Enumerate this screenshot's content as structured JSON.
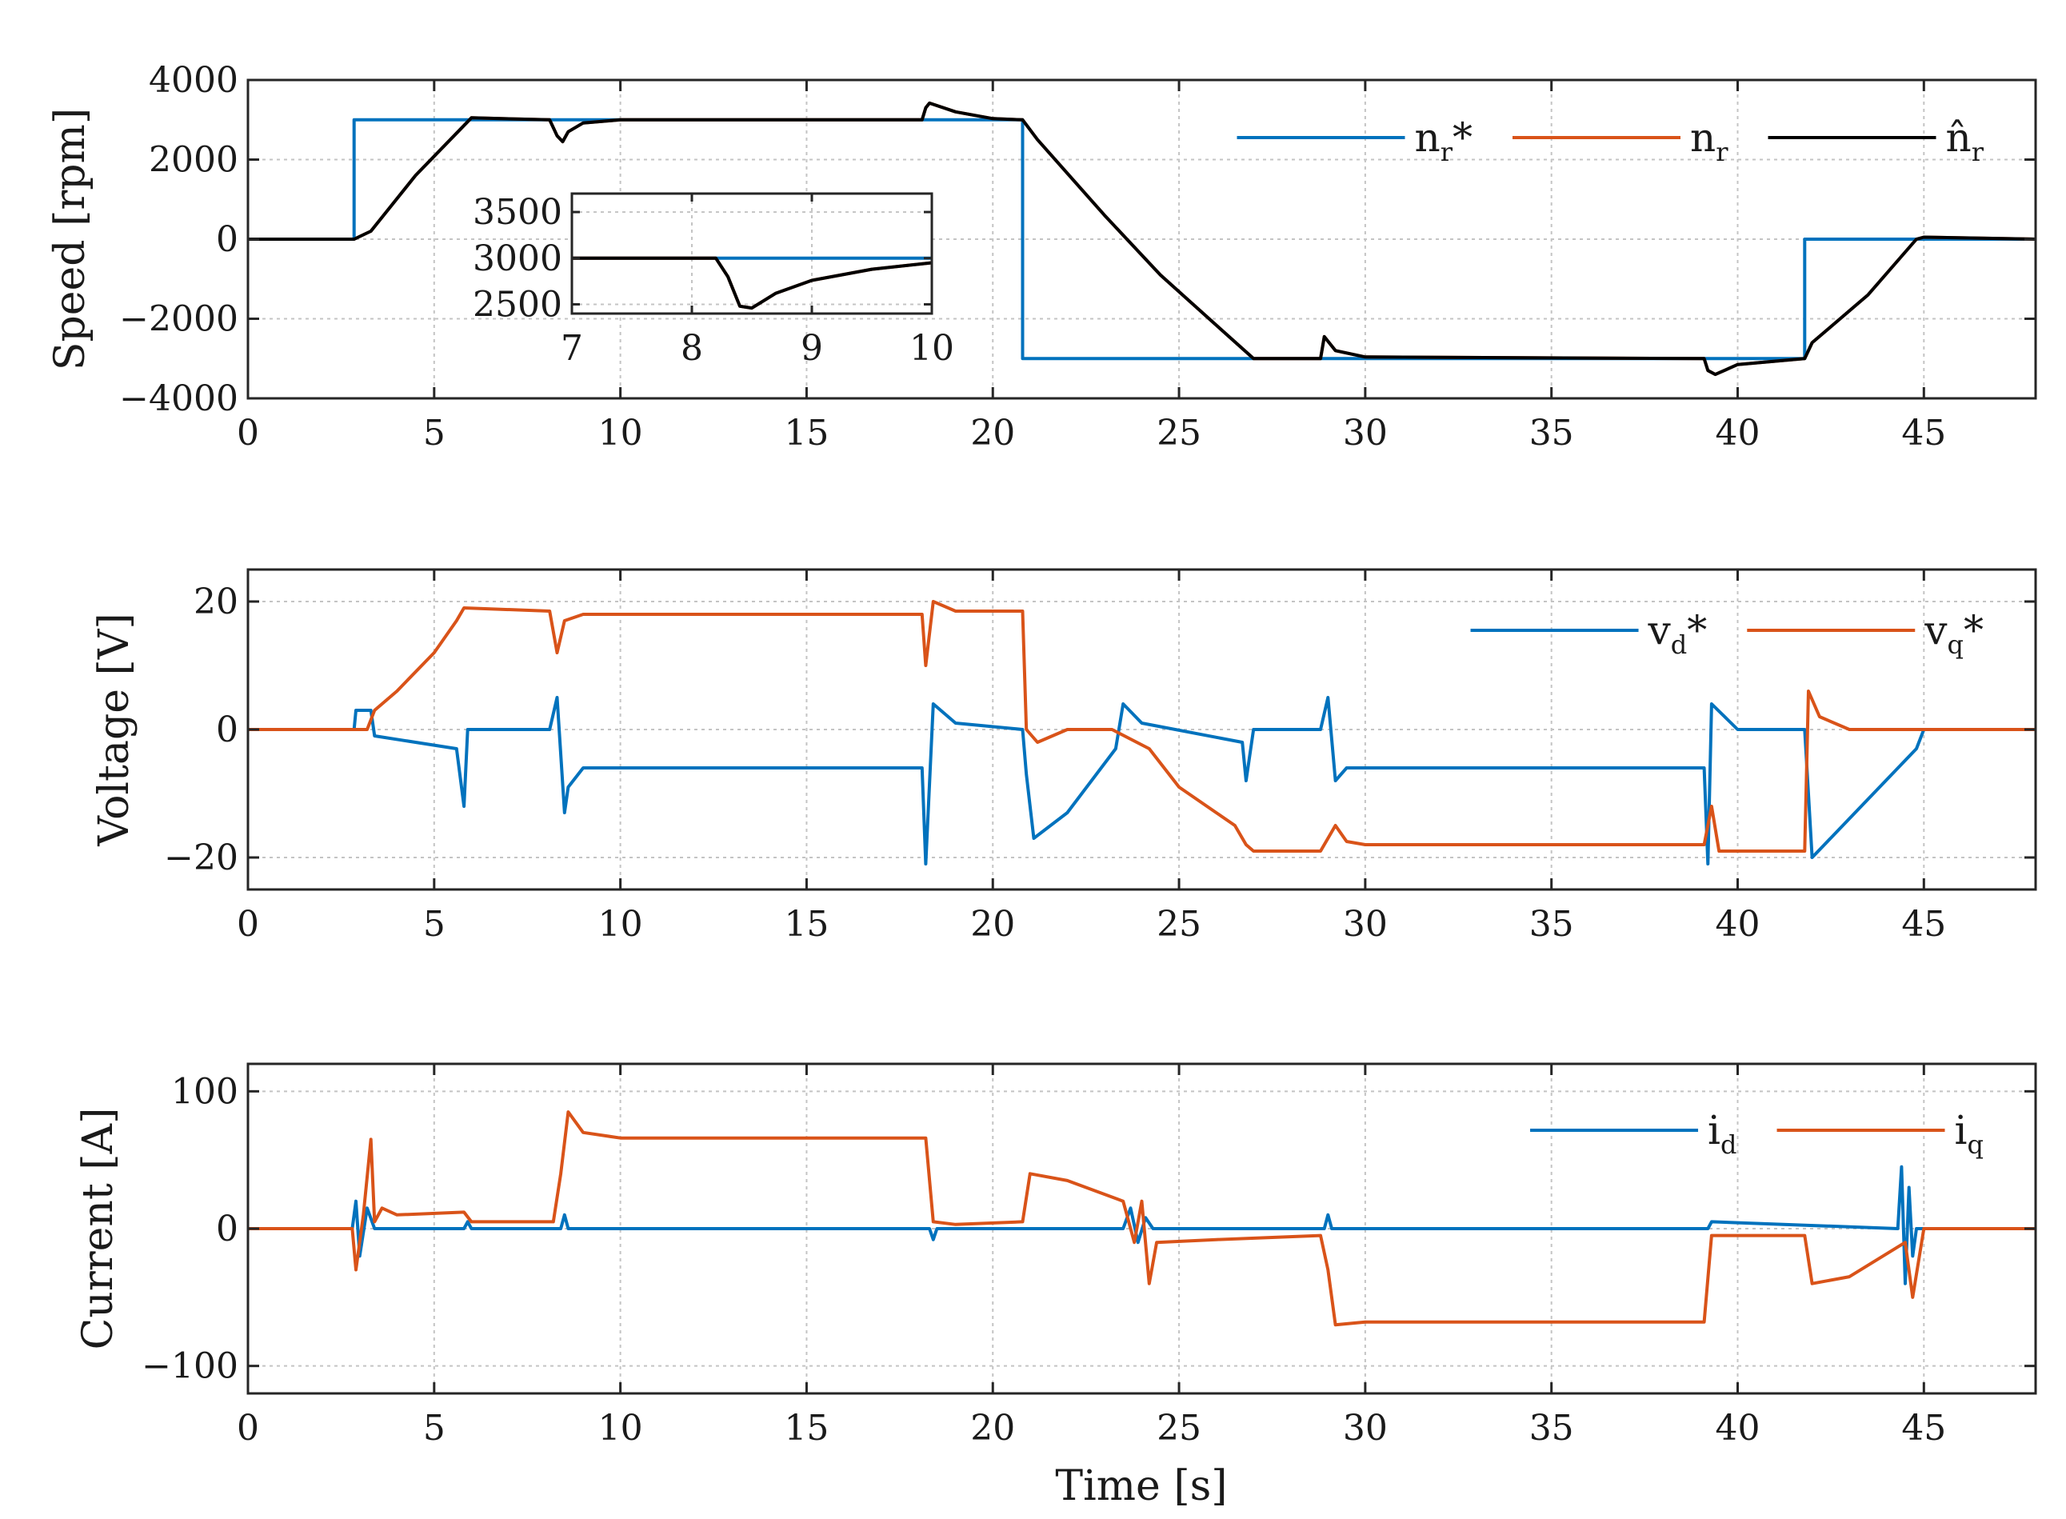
{
  "colors": {
    "blue": "#0072BD",
    "orange": "#D95319",
    "black": "#000000"
  },
  "chart_data": [
    {
      "type": "line",
      "ylabel": "Speed [rpm]",
      "xlabel": "",
      "xlim": [
        0,
        48
      ],
      "ylim": [
        -4000,
        4000
      ],
      "xticks": [
        0,
        5,
        10,
        15,
        20,
        25,
        30,
        35,
        40,
        45
      ],
      "yticks": [
        -4000,
        -2000,
        0,
        2000,
        4000
      ],
      "ytick_labels": [
        "−4000",
        "−2000",
        "0",
        "2000",
        "4000"
      ],
      "grid": true,
      "legend_position": "top-right",
      "legend": [
        {
          "base": "n",
          "sub": "r",
          "suffix": "*",
          "color": "blue"
        },
        {
          "base": "n",
          "sub": "r",
          "suffix": "",
          "color": "orange"
        },
        {
          "base": "n̂",
          "sub": "r",
          "suffix": "",
          "color": "black"
        }
      ],
      "series": [
        {
          "color": "blue",
          "x": [
            0,
            2.85,
            2.85,
            20.8,
            20.8,
            41.8,
            41.8,
            48
          ],
          "y": [
            0,
            0,
            3000,
            3000,
            -3000,
            -3000,
            0,
            0
          ]
        },
        {
          "color": "orange",
          "x": [
            0,
            2.85,
            3.3,
            4.5,
            6,
            8.1,
            8.3,
            8.45,
            8.6,
            9,
            10,
            18.1,
            18.2,
            18.3,
            19,
            20,
            20.8,
            21.2,
            23,
            24.5,
            27,
            28.8,
            28.9,
            29.2,
            30,
            39.1,
            39.2,
            39.4,
            40,
            41.8,
            42,
            43.5,
            44.8,
            45,
            48
          ],
          "y": [
            0,
            0,
            200,
            1600,
            3050,
            3000,
            2600,
            2450,
            2700,
            2920,
            3000,
            3000,
            3300,
            3420,
            3200,
            3030,
            3000,
            2500,
            600,
            -900,
            -3000,
            -3000,
            -2450,
            -2800,
            -2960,
            -3000,
            -3300,
            -3400,
            -3150,
            -3000,
            -2600,
            -1400,
            0,
            50,
            0
          ]
        },
        {
          "color": "black",
          "x": [
            0,
            2.85,
            3.3,
            4.5,
            6,
            8.1,
            8.3,
            8.45,
            8.6,
            9,
            10,
            18.1,
            18.2,
            18.3,
            19,
            20,
            20.8,
            21.2,
            23,
            24.5,
            27,
            28.8,
            28.9,
            29.2,
            30,
            39.1,
            39.2,
            39.4,
            40,
            41.8,
            42,
            43.5,
            44.8,
            45,
            48
          ],
          "y": [
            0,
            0,
            200,
            1600,
            3050,
            3000,
            2600,
            2450,
            2700,
            2920,
            3000,
            3000,
            3300,
            3420,
            3200,
            3030,
            3000,
            2500,
            600,
            -900,
            -3000,
            -3000,
            -2450,
            -2800,
            -2960,
            -3000,
            -3300,
            -3400,
            -3150,
            -3000,
            -2600,
            -1400,
            0,
            50,
            0
          ]
        }
      ],
      "inset": {
        "xlim": [
          7,
          10
        ],
        "ylim": [
          2400,
          3700
        ],
        "xticks": [
          7,
          8,
          9,
          10
        ],
        "yticks": [
          2500,
          3000,
          3500
        ],
        "grid": true,
        "series": [
          {
            "color": "blue",
            "x": [
              7,
              10
            ],
            "y": [
              3000,
              3000
            ]
          },
          {
            "color": "orange",
            "x": [
              7,
              8.2,
              8.3,
              8.4,
              8.5,
              8.7,
              9,
              9.5,
              10
            ],
            "y": [
              3000,
              3000,
              2800,
              2480,
              2460,
              2620,
              2760,
              2880,
              2950
            ]
          },
          {
            "color": "black",
            "x": [
              7,
              8.2,
              8.3,
              8.4,
              8.5,
              8.7,
              9,
              9.5,
              10
            ],
            "y": [
              3000,
              3000,
              2800,
              2480,
              2460,
              2620,
              2760,
              2880,
              2950
            ]
          }
        ]
      }
    },
    {
      "type": "line",
      "ylabel": "Voltage [V]",
      "xlabel": "",
      "xlim": [
        0,
        48
      ],
      "ylim": [
        -25,
        25
      ],
      "xticks": [
        0,
        5,
        10,
        15,
        20,
        25,
        30,
        35,
        40,
        45
      ],
      "yticks": [
        -20,
        0,
        20
      ],
      "ytick_labels": [
        "−20",
        "0",
        "20"
      ],
      "grid": true,
      "legend_position": "top-right",
      "legend": [
        {
          "base": "v",
          "sub": "d",
          "suffix": "*",
          "color": "blue"
        },
        {
          "base": "v",
          "sub": "q",
          "suffix": "*",
          "color": "orange"
        }
      ],
      "series": [
        {
          "color": "blue",
          "x": [
            0,
            2.85,
            2.9,
            3.3,
            3.4,
            5.6,
            5.8,
            5.9,
            6.1,
            8.1,
            8.3,
            8.5,
            8.6,
            9,
            10,
            18.1,
            18.2,
            18.4,
            19,
            20.8,
            20.9,
            21.1,
            22,
            23.3,
            23.5,
            24,
            26.7,
            26.8,
            27,
            28.8,
            29,
            29.2,
            29.5,
            30,
            39.1,
            39.2,
            39.3,
            40,
            41.8,
            42,
            44.8,
            45,
            48
          ],
          "y": [
            0,
            0,
            3,
            3,
            -1,
            -3,
            -12,
            0,
            0,
            0,
            5,
            -13,
            -9,
            -6,
            -6,
            -6,
            -21,
            4,
            1,
            0,
            -7,
            -17,
            -13,
            -3,
            4,
            1,
            -2,
            -8,
            0,
            0,
            5,
            -8,
            -6,
            -6,
            -6,
            -21,
            4,
            0,
            0,
            -20,
            -3,
            0,
            0
          ]
        },
        {
          "color": "orange",
          "x": [
            0,
            3.2,
            3.4,
            4,
            5,
            5.6,
            5.8,
            8.1,
            8.3,
            8.5,
            9,
            10,
            18.1,
            18.2,
            18.4,
            19,
            20.8,
            20.9,
            21.2,
            22,
            23.2,
            24.2,
            25,
            26.5,
            26.8,
            27,
            28.8,
            29,
            29.2,
            29.5,
            30,
            39.1,
            39.3,
            39.5,
            40,
            41.8,
            41.9,
            42.2,
            43,
            44,
            45,
            48
          ],
          "y": [
            0,
            0,
            3,
            6,
            12,
            17,
            19,
            18.5,
            12,
            17,
            18,
            18,
            18,
            10,
            20,
            18.5,
            18.5,
            0,
            -2,
            0,
            0,
            -3,
            -9,
            -15,
            -18,
            -19,
            -19,
            -17,
            -15,
            -17.5,
            -18,
            -18,
            -12,
            -19,
            -19,
            -19,
            6,
            2,
            0,
            0,
            0,
            0
          ]
        }
      ]
    },
    {
      "type": "line",
      "ylabel": "Current [A]",
      "xlabel": "Time [s]",
      "xlim": [
        0,
        48
      ],
      "ylim": [
        -120,
        120
      ],
      "xticks": [
        0,
        5,
        10,
        15,
        20,
        25,
        30,
        35,
        40,
        45
      ],
      "yticks": [
        -100,
        0,
        100
      ],
      "ytick_labels": [
        "−100",
        "0",
        "100"
      ],
      "grid": true,
      "legend_position": "top-right",
      "legend": [
        {
          "base": "i",
          "sub": "d",
          "suffix": "",
          "color": "blue"
        },
        {
          "base": "i",
          "sub": "q",
          "suffix": "",
          "color": "orange"
        }
      ],
      "series": [
        {
          "color": "blue",
          "x": [
            0,
            2.8,
            2.9,
            3.0,
            3.2,
            3.4,
            5.8,
            5.9,
            6.0,
            8.4,
            8.5,
            8.6,
            18.3,
            18.4,
            18.5,
            23.5,
            23.7,
            23.9,
            24.1,
            24.3,
            28.9,
            29.0,
            29.1,
            39.2,
            39.3,
            44.3,
            44.4,
            44.5,
            44.6,
            44.7,
            44.8,
            48
          ],
          "y": [
            0,
            0,
            20,
            -20,
            15,
            0,
            0,
            5,
            0,
            0,
            10,
            0,
            0,
            -8,
            0,
            0,
            15,
            -10,
            8,
            0,
            0,
            10,
            0,
            0,
            5,
            0,
            45,
            -40,
            30,
            -20,
            0,
            0
          ]
        },
        {
          "color": "orange",
          "x": [
            0,
            2.8,
            2.9,
            3.1,
            3.3,
            3.4,
            3.6,
            4,
            5.8,
            6,
            8.2,
            8.4,
            8.6,
            9,
            10,
            18.2,
            18.4,
            19,
            20.8,
            21,
            22,
            23.5,
            23.8,
            24,
            24.2,
            24.4,
            26,
            28.8,
            29,
            29.2,
            30,
            39.1,
            39.3,
            40,
            41.8,
            42,
            43,
            44.5,
            44.7,
            45,
            48
          ],
          "y": [
            0,
            0,
            -30,
            10,
            65,
            5,
            15,
            10,
            12,
            5,
            5,
            40,
            85,
            70,
            66,
            66,
            5,
            3,
            5,
            40,
            35,
            20,
            -10,
            20,
            -40,
            -10,
            -8,
            -5,
            -30,
            -70,
            -68,
            -68,
            -5,
            -5,
            -5,
            -40,
            -35,
            -10,
            -50,
            0,
            0
          ]
        }
      ]
    }
  ]
}
